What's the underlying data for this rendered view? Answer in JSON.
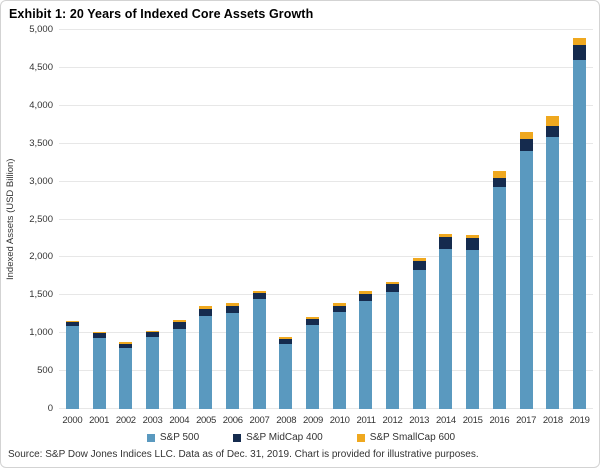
{
  "title": "Exhibit 1: 20 Years of Indexed Core Assets Growth",
  "source": "Source: S&P Dow Jones Indices LLC. Data as of Dec. 31, 2019. Chart is provided for illustrative purposes.",
  "chart_data": {
    "type": "bar",
    "stacked": true,
    "title": "Exhibit 1: 20 Years of Indexed Core Assets Growth",
    "xlabel": "",
    "ylabel": "Indexed Assets (USD Billion)",
    "ylim": [
      0,
      5000
    ],
    "grid": true,
    "legend_position": "bottom",
    "yticks": [
      0,
      500,
      1000,
      1500,
      2000,
      2500,
      3000,
      3500,
      4000,
      4500,
      5000
    ],
    "ytick_labels": [
      "0",
      "500",
      "1,000",
      "1,500",
      "2,000",
      "2,500",
      "3,000",
      "3,500",
      "4,000",
      "4,500",
      "5,000"
    ],
    "categories": [
      "2000",
      "2001",
      "2002",
      "2003",
      "2004",
      "2005",
      "2006",
      "2007",
      "2008",
      "2009",
      "2010",
      "2011",
      "2012",
      "2013",
      "2014",
      "2015",
      "2016",
      "2017",
      "2018",
      "2019"
    ],
    "series": [
      {
        "name": "S&P 500",
        "color": "#5A99BF",
        "values": [
          1090,
          940,
          810,
          950,
          1060,
          1230,
          1265,
          1450,
          860,
          1105,
          1275,
          1430,
          1545,
          1840,
          2110,
          2100,
          2930,
          3400,
          3590,
          4600
        ]
      },
      {
        "name": "S&P MidCap 400",
        "color": "#152B4E",
        "values": [
          55,
          60,
          53,
          60,
          85,
          90,
          90,
          75,
          60,
          80,
          90,
          85,
          100,
          110,
          165,
          160,
          120,
          160,
          150,
          200
        ]
      },
      {
        "name": "S&P SmallCap 600",
        "color": "#EFA81F",
        "values": [
          10,
          20,
          22,
          25,
          35,
          35,
          45,
          35,
          25,
          35,
          35,
          40,
          35,
          40,
          35,
          30,
          90,
          90,
          120,
          100
        ]
      }
    ],
    "totals": [
      1155,
      1020,
      885,
      1035,
      1180,
      1355,
      1400,
      1560,
      945,
      1220,
      1400,
      1555,
      1680,
      1990,
      2310,
      2290,
      3140,
      3650,
      3860,
      4900
    ]
  }
}
